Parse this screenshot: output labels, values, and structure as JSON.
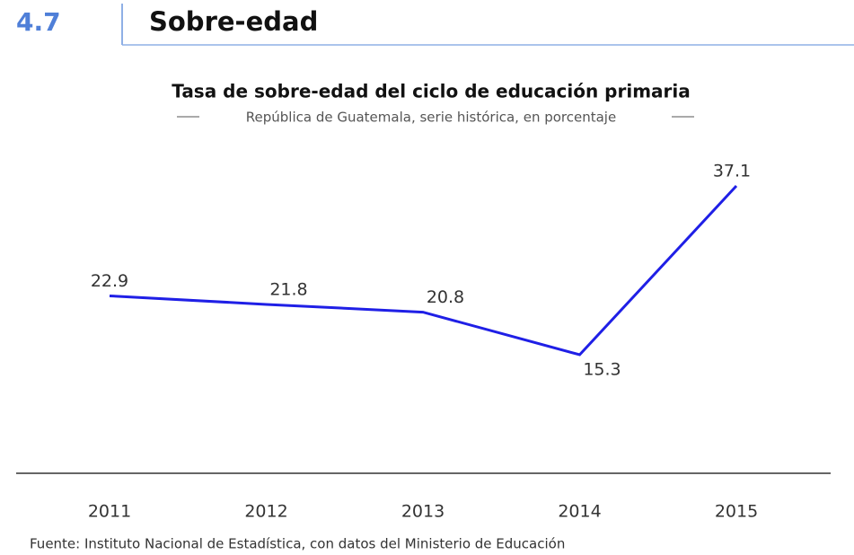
{
  "header": {
    "number": "4.7",
    "title": "Sobre-edad"
  },
  "chart_data": {
    "type": "line",
    "title": "Tasa de sobre-edad del ciclo de educación primaria",
    "subtitle": "República de Guatemala, serie histórica, en porcentaje",
    "categories": [
      "2011",
      "2012",
      "2013",
      "2014",
      "2015"
    ],
    "series": [
      {
        "name": "Tasa de sobre-edad",
        "color": "#1f1fe6",
        "values": [
          22.9,
          21.8,
          20.8,
          15.3,
          37.1
        ]
      }
    ],
    "source": "Fuente: Instituto Nacional de Estadística, con datos del Ministerio de Educación"
  }
}
